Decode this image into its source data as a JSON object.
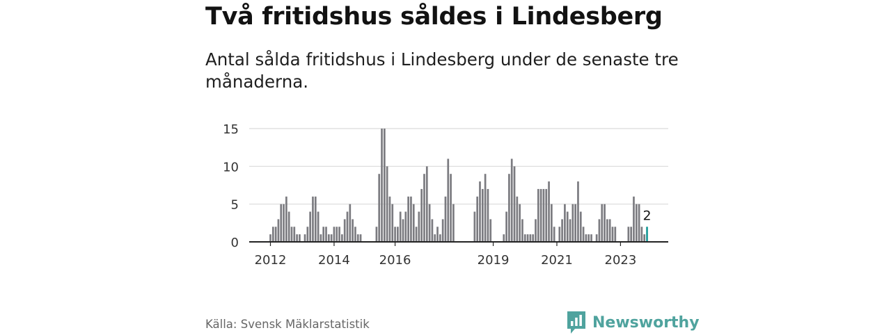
{
  "header": {
    "title": "Två fritidshus såldes i Lindesberg",
    "subtitle": "Antal sålda fritidshus i Lindesberg under de senaste tre månaderna."
  },
  "footer": {
    "source": "Källa: Svensk Mäklarstatistik",
    "brand": "Newsworthy",
    "brand_icon": "bar-chart-speech-bubble-icon"
  },
  "colors": {
    "bar": "#7b7b80",
    "highlight": "#1a9a98",
    "gridline": "#d9d9d9",
    "axis": "#222222",
    "brand": "#4fa39e"
  },
  "chart_data": {
    "type": "bar",
    "title": "",
    "xlabel": "",
    "ylabel": "",
    "ylim": [
      0,
      15
    ],
    "yticks": [
      0,
      5,
      10,
      15
    ],
    "xtick_labels": [
      "2012",
      "2014",
      "2016",
      "2019",
      "2021",
      "2023"
    ],
    "grid": true,
    "last_value_label": "2",
    "series": [
      {
        "values": [
          1,
          2,
          2,
          3,
          5,
          5,
          6,
          4,
          2,
          2,
          1,
          1,
          0,
          1,
          2,
          4,
          6,
          6,
          4,
          1,
          2,
          2,
          1,
          1,
          2,
          2,
          2,
          1,
          3,
          4,
          5,
          3,
          2,
          1,
          1,
          0,
          0,
          0,
          0,
          0,
          2,
          9,
          15,
          15,
          10,
          6,
          5,
          2,
          2,
          4,
          3,
          4,
          6,
          6,
          5,
          2,
          4,
          7,
          9,
          10,
          5,
          3,
          1,
          2,
          1,
          3,
          6,
          11,
          9,
          5,
          0,
          0,
          0,
          0,
          0,
          0,
          0,
          4,
          6,
          8,
          7,
          9,
          7,
          3,
          0,
          0,
          0,
          0,
          1,
          4,
          9,
          11,
          10,
          6,
          5,
          3,
          1,
          1,
          1,
          1,
          3,
          7,
          7,
          7,
          7,
          8,
          5,
          2,
          0,
          2,
          3,
          5,
          4,
          3,
          5,
          5,
          8,
          4,
          2,
          1,
          1,
          1,
          0,
          1,
          3,
          5,
          5,
          3,
          3,
          2,
          2,
          0,
          0,
          0,
          0,
          2,
          2,
          6,
          5,
          5,
          2,
          1,
          2
        ]
      }
    ]
  }
}
